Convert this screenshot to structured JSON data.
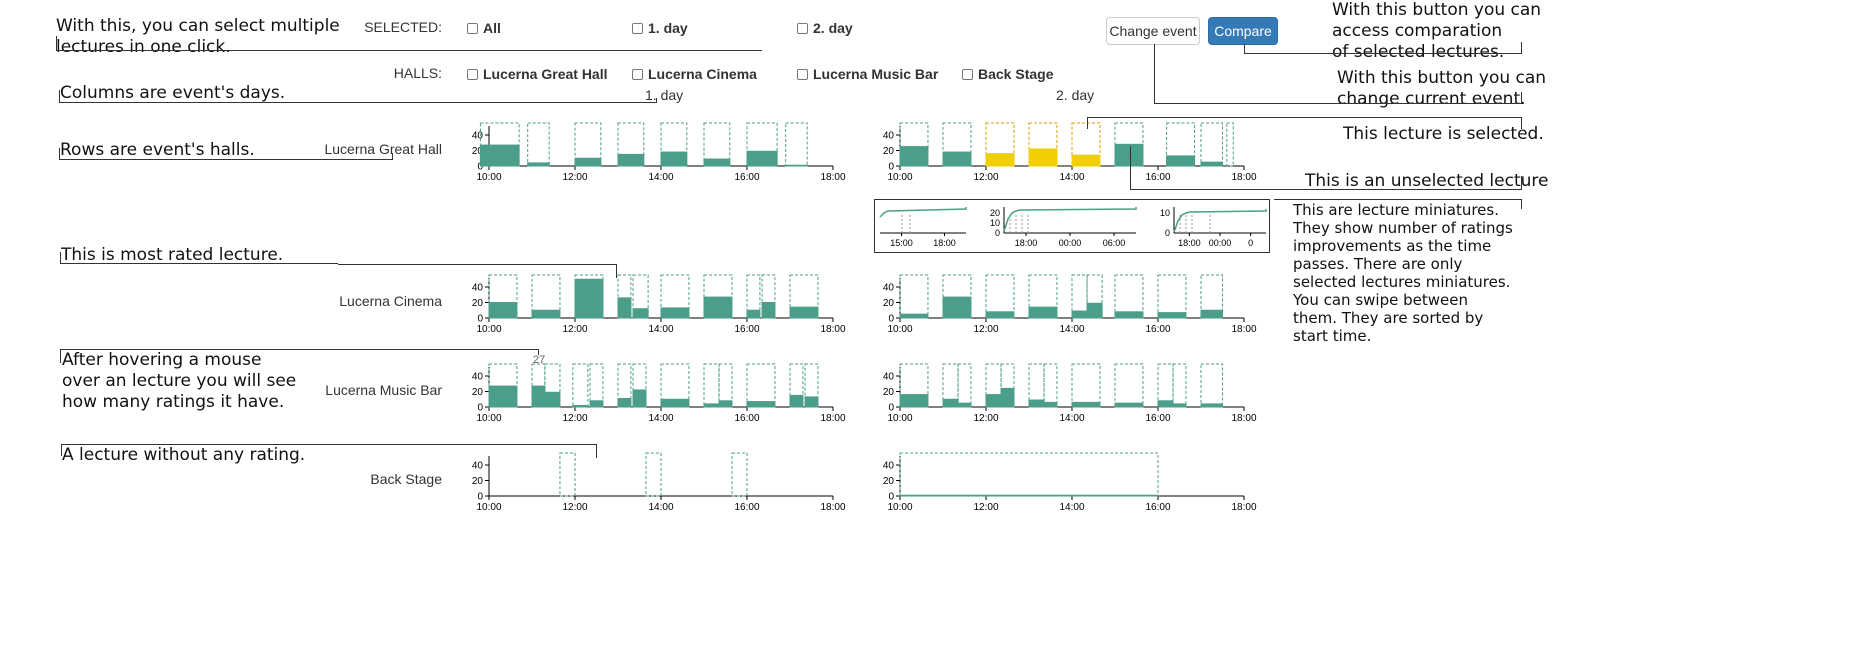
{
  "header": {
    "selected_label": "SELECTED:",
    "halls_label": "HALLS:",
    "selected_options": [
      "All",
      "1. day",
      "2. day"
    ],
    "hall_options": [
      "Lucerna Great Hall",
      "Lucerna Cinema",
      "Lucerna Music Bar",
      "Back Stage"
    ],
    "change_event_label": "Change event",
    "compare_label": "Compare"
  },
  "days": [
    "1. day",
    "2. day"
  ],
  "halls": [
    "Lucerna Great Hall",
    "Lucerna Cinema",
    "Lucerna Music Bar",
    "Back Stage"
  ],
  "annotations": {
    "select_multiple": "With this, you can select multiple\nlectures in one click.",
    "columns": "Columns are event's days.",
    "rows": "Rows are event's halls.",
    "most_rated": "This is most rated lecture.",
    "hover": "After hovering a mouse\nover an lecture you will see\nhow many ratings it have.",
    "no_rating": "A lecture without any rating.",
    "compare_btn": "With this button you can\naccess comparation\nof selected lectures.",
    "change_btn": "With this button you can\nchange current event.",
    "selected": "This lecture is selected.",
    "unselected": "This is an unselected lecture",
    "miniatures": "This are lecture miniatures.\nThey show number of ratings\nimprovements as the time\npasses. There are only\nselected lectures miniatures.\nYou can swipe between\nthem. They are sorted by\nstart time."
  },
  "hover_tooltip": "27",
  "colors": {
    "teal": "#4a9e8a",
    "yellow": "#f0d000",
    "frame_teal": "#4a9e8a",
    "frame_yellow": "#d8a000",
    "axis": "#000"
  },
  "chart_data": {
    "type": "bar",
    "x_ticks": [
      "10:00",
      "12:00",
      "14:00",
      "16:00",
      "18:00"
    ],
    "x_range_hours": [
      10,
      18
    ],
    "y_ticks": [
      0,
      20,
      40
    ],
    "ylim": [
      0,
      50
    ],
    "charts": [
      {
        "day": "1. day",
        "hall": "Lucerna Great Hall",
        "lectures": [
          {
            "start": 9.8,
            "end": 10.7,
            "value": 27
          },
          {
            "start": 10.9,
            "end": 11.4,
            "value": 4
          },
          {
            "start": 12.0,
            "end": 12.6,
            "value": 10
          },
          {
            "start": 13.0,
            "end": 13.6,
            "value": 15
          },
          {
            "start": 14.0,
            "end": 14.6,
            "value": 18
          },
          {
            "start": 15.0,
            "end": 15.6,
            "value": 9
          },
          {
            "start": 16.0,
            "end": 16.7,
            "value": 19
          },
          {
            "start": 16.9,
            "end": 17.4,
            "value": 1
          }
        ]
      },
      {
        "day": "2. day",
        "hall": "Lucerna Great Hall",
        "lectures": [
          {
            "start": 10.0,
            "end": 10.65,
            "value": 25,
            "selected": false
          },
          {
            "start": 11.0,
            "end": 11.65,
            "value": 18,
            "selected": false
          },
          {
            "start": 12.0,
            "end": 12.65,
            "value": 16,
            "selected": true
          },
          {
            "start": 13.0,
            "end": 13.65,
            "value": 22,
            "selected": true
          },
          {
            "start": 14.0,
            "end": 14.65,
            "value": 14,
            "selected": true
          },
          {
            "start": 15.0,
            "end": 15.65,
            "value": 28,
            "selected": false
          },
          {
            "start": 16.2,
            "end": 16.85,
            "value": 13,
            "selected": false
          },
          {
            "start": 17.0,
            "end": 17.5,
            "value": 5,
            "selected": false
          },
          {
            "start": 17.6,
            "end": 17.75,
            "value": 0,
            "selected": false
          }
        ]
      },
      {
        "day": "1. day",
        "hall": "Lucerna Cinema",
        "lectures": [
          {
            "start": 10.0,
            "end": 10.65,
            "value": 20
          },
          {
            "start": 11.0,
            "end": 11.65,
            "value": 10
          },
          {
            "start": 12.0,
            "end": 12.65,
            "value": 55
          },
          {
            "start": 13.0,
            "end": 13.3,
            "value": 26
          },
          {
            "start": 13.35,
            "end": 13.7,
            "value": 12
          },
          {
            "start": 14.0,
            "end": 14.65,
            "value": 13
          },
          {
            "start": 15.0,
            "end": 15.65,
            "value": 27
          },
          {
            "start": 16.0,
            "end": 16.3,
            "value": 10
          },
          {
            "start": 16.35,
            "end": 16.65,
            "value": 20
          },
          {
            "start": 17.0,
            "end": 17.65,
            "value": 14
          }
        ]
      },
      {
        "day": "2. day",
        "hall": "Lucerna Cinema",
        "lectures": [
          {
            "start": 10.0,
            "end": 10.65,
            "value": 5
          },
          {
            "start": 11.0,
            "end": 11.65,
            "value": 27
          },
          {
            "start": 12.0,
            "end": 12.65,
            "value": 8
          },
          {
            "start": 13.0,
            "end": 13.65,
            "value": 14
          },
          {
            "start": 14.0,
            "end": 14.35,
            "value": 9
          },
          {
            "start": 14.35,
            "end": 14.7,
            "value": 19
          },
          {
            "start": 15.0,
            "end": 15.65,
            "value": 8
          },
          {
            "start": 16.0,
            "end": 16.65,
            "value": 7
          },
          {
            "start": 17.0,
            "end": 17.5,
            "value": 10
          }
        ]
      },
      {
        "day": "1. day",
        "hall": "Lucerna Music Bar",
        "lectures": [
          {
            "start": 10.0,
            "end": 10.65,
            "value": 27
          },
          {
            "start": 11.0,
            "end": 11.3,
            "value": 27
          },
          {
            "start": 11.3,
            "end": 11.65,
            "value": 19
          },
          {
            "start": 11.95,
            "end": 12.3,
            "value": 2
          },
          {
            "start": 12.35,
            "end": 12.65,
            "value": 8
          },
          {
            "start": 13.0,
            "end": 13.3,
            "value": 11
          },
          {
            "start": 13.35,
            "end": 13.65,
            "value": 22
          },
          {
            "start": 14.0,
            "end": 14.65,
            "value": 10
          },
          {
            "start": 15.0,
            "end": 15.35,
            "value": 4
          },
          {
            "start": 15.35,
            "end": 15.65,
            "value": 8
          },
          {
            "start": 16.0,
            "end": 16.65,
            "value": 7
          },
          {
            "start": 17.0,
            "end": 17.3,
            "value": 15
          },
          {
            "start": 17.35,
            "end": 17.65,
            "value": 13
          }
        ]
      },
      {
        "day": "2. day",
        "hall": "Lucerna Music Bar",
        "lectures": [
          {
            "start": 10.0,
            "end": 10.65,
            "value": 16
          },
          {
            "start": 11.0,
            "end": 11.35,
            "value": 10
          },
          {
            "start": 11.35,
            "end": 11.65,
            "value": 5
          },
          {
            "start": 12.0,
            "end": 12.35,
            "value": 16
          },
          {
            "start": 12.35,
            "end": 12.65,
            "value": 24
          },
          {
            "start": 13.0,
            "end": 13.35,
            "value": 9
          },
          {
            "start": 13.35,
            "end": 13.65,
            "value": 6
          },
          {
            "start": 14.0,
            "end": 14.65,
            "value": 6
          },
          {
            "start": 15.0,
            "end": 15.65,
            "value": 5
          },
          {
            "start": 16.0,
            "end": 16.35,
            "value": 8
          },
          {
            "start": 16.35,
            "end": 16.65,
            "value": 4
          },
          {
            "start": 17.0,
            "end": 17.5,
            "value": 4
          }
        ]
      },
      {
        "day": "1. day",
        "hall": "Back Stage",
        "lectures": [
          {
            "start": 11.65,
            "end": 12.0,
            "value": 0
          },
          {
            "start": 13.65,
            "end": 14.0,
            "value": 0
          },
          {
            "start": 15.65,
            "end": 16.0,
            "value": 0
          }
        ]
      },
      {
        "day": "2. day",
        "hall": "Back Stage",
        "lectures": [
          {
            "start": 10.0,
            "end": 16.0,
            "value": 1
          }
        ]
      }
    ],
    "miniatures": [
      {
        "x_ticks": [
          "15:00",
          "18:00"
        ],
        "y_ticks": []
      },
      {
        "x_ticks": [
          "18:00",
          "00:00",
          "06:00"
        ],
        "y_ticks": [
          0,
          10,
          20
        ]
      },
      {
        "x_ticks": [
          "18:00",
          "00:00",
          "0"
        ],
        "y_ticks": [
          0,
          10
        ]
      }
    ]
  }
}
